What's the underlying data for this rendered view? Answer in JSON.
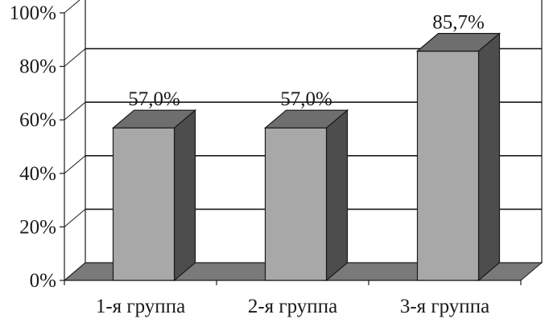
{
  "chart_data": {
    "type": "bar",
    "title": "",
    "xlabel": "",
    "ylabel": "",
    "categories": [
      "1-я группа",
      "2-я группа",
      "3-я группа"
    ],
    "values": [
      57.0,
      57.0,
      85.7
    ],
    "data_labels": [
      "57,0%",
      "57,0%",
      "85,7%"
    ],
    "ylim": [
      0,
      100
    ],
    "yticks": [
      0,
      20,
      40,
      60,
      80,
      100
    ],
    "ytick_labels": [
      "0%",
      "20%",
      "40%",
      "60%",
      "80%",
      "100%"
    ],
    "style": "3d-bar",
    "grid": true,
    "legend": "none",
    "colors": {
      "bar_front": "#a8a8a8",
      "bar_top": "#6e6e6e",
      "bar_side": "#4d4d4d",
      "floor": "#7a7a7a",
      "line": "#1a1a1a"
    }
  }
}
